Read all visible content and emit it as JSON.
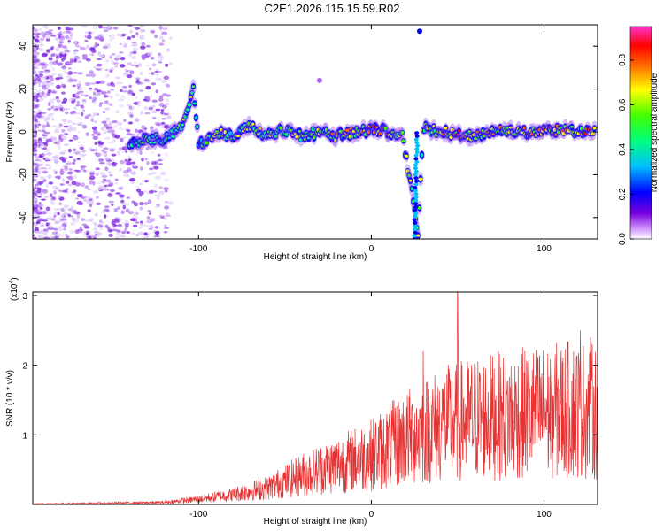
{
  "title": "C2E1.2026.115.15.59.R02",
  "chart_data": [
    {
      "type": "heatmap",
      "name": "spectrogram",
      "xlabel": "Height of straight line (km)",
      "ylabel": "Frequency (Hz)",
      "xlim": [
        -196,
        131
      ],
      "ylim": [
        -50,
        50
      ],
      "xticks": [
        -100,
        0,
        100
      ],
      "xtick_labels": [
        "-100",
        "0",
        "100"
      ],
      "yticks": [
        -40,
        -20,
        0,
        20,
        40
      ],
      "ytick_labels": [
        "-40",
        "-20",
        "0",
        "20",
        "40"
      ],
      "colorbar": {
        "label": "Normalized spectral amplitude",
        "range": [
          0.0,
          0.95
        ],
        "ticks": [
          0.0,
          0.2,
          0.4,
          0.6,
          0.8
        ],
        "tick_labels": [
          "0.0",
          "0.2",
          "0.4",
          "0.6",
          "0.8"
        ],
        "colormap": [
          "#ffffff",
          "#cc66ff",
          "#7700dd",
          "#0000ff",
          "#00ccff",
          "#00ff66",
          "#ffff00",
          "#ff0000",
          "#ff33aa"
        ]
      },
      "ridge": [
        {
          "x": -140,
          "y": -6,
          "a": 0.3
        },
        {
          "x": -130,
          "y": -3,
          "a": 0.4
        },
        {
          "x": -120,
          "y": -4,
          "a": 0.35
        },
        {
          "x": -110,
          "y": 2,
          "a": 0.45
        },
        {
          "x": -103,
          "y": 20,
          "a": 0.5
        },
        {
          "x": -100,
          "y": -6,
          "a": 0.3
        },
        {
          "x": -90,
          "y": 0,
          "a": 0.45
        },
        {
          "x": -80,
          "y": -2,
          "a": 0.45
        },
        {
          "x": -70,
          "y": 3,
          "a": 0.5
        },
        {
          "x": -60,
          "y": -2,
          "a": 0.45
        },
        {
          "x": -50,
          "y": 1,
          "a": 0.45
        },
        {
          "x": -40,
          "y": -2,
          "a": 0.45
        },
        {
          "x": -30,
          "y": 0,
          "a": 0.45
        },
        {
          "x": -20,
          "y": -2,
          "a": 0.55
        },
        {
          "x": -10,
          "y": 0,
          "a": 0.55
        },
        {
          "x": 0,
          "y": 1,
          "a": 0.75
        },
        {
          "x": 10,
          "y": 0,
          "a": 0.65
        },
        {
          "x": 18,
          "y": -2,
          "a": 0.5
        },
        {
          "x": 25,
          "y": -35,
          "a": 0.45
        },
        {
          "x": 27,
          "y": -48,
          "a": 0.5
        },
        {
          "x": 30,
          "y": 2,
          "a": 0.5
        },
        {
          "x": 40,
          "y": 0,
          "a": 0.6
        },
        {
          "x": 50,
          "y": -1,
          "a": 0.65
        },
        {
          "x": 60,
          "y": -2,
          "a": 0.55
        },
        {
          "x": 70,
          "y": 0,
          "a": 0.6
        },
        {
          "x": 80,
          "y": 1,
          "a": 0.6
        },
        {
          "x": 90,
          "y": 0,
          "a": 0.6
        },
        {
          "x": 100,
          "y": 0,
          "a": 0.65
        },
        {
          "x": 110,
          "y": 1,
          "a": 0.6
        },
        {
          "x": 120,
          "y": 0,
          "a": 0.65
        },
        {
          "x": 130,
          "y": 0,
          "a": 0.6
        }
      ]
    },
    {
      "type": "line",
      "name": "snr",
      "xlabel": "Height of straight line (km)",
      "ylabel": "SNR (10 * v/v)",
      "scale_label": "(x10",
      "scale_exponent": "4",
      "xlim": [
        -196,
        131
      ],
      "ylim": [
        0,
        3.05
      ],
      "xticks": [
        -100,
        0,
        100
      ],
      "xtick_labels": [
        "-100",
        "0",
        "100"
      ],
      "yticks": [
        1,
        2,
        3
      ],
      "ytick_labels": [
        "1",
        "2",
        "3"
      ],
      "color": "#e63232",
      "envelope": [
        {
          "x": -196,
          "y": 0.01
        },
        {
          "x": -150,
          "y": 0.02
        },
        {
          "x": -120,
          "y": 0.03
        },
        {
          "x": -100,
          "y": 0.08
        },
        {
          "x": -80,
          "y": 0.15
        },
        {
          "x": -60,
          "y": 0.25
        },
        {
          "x": -40,
          "y": 0.45
        },
        {
          "x": -20,
          "y": 0.6
        },
        {
          "x": 0,
          "y": 0.75
        },
        {
          "x": 20,
          "y": 1.0
        },
        {
          "x": 40,
          "y": 1.2
        },
        {
          "x": 60,
          "y": 1.3
        },
        {
          "x": 80,
          "y": 1.35
        },
        {
          "x": 100,
          "y": 1.4
        },
        {
          "x": 120,
          "y": 1.45
        },
        {
          "x": 131,
          "y": 1.4
        }
      ],
      "peaks": [
        {
          "x": 50,
          "y": 3.05
        },
        {
          "x": 30,
          "y": 2.2
        },
        {
          "x": 121,
          "y": 2.5
        },
        {
          "x": 127,
          "y": 2.4
        }
      ]
    }
  ]
}
